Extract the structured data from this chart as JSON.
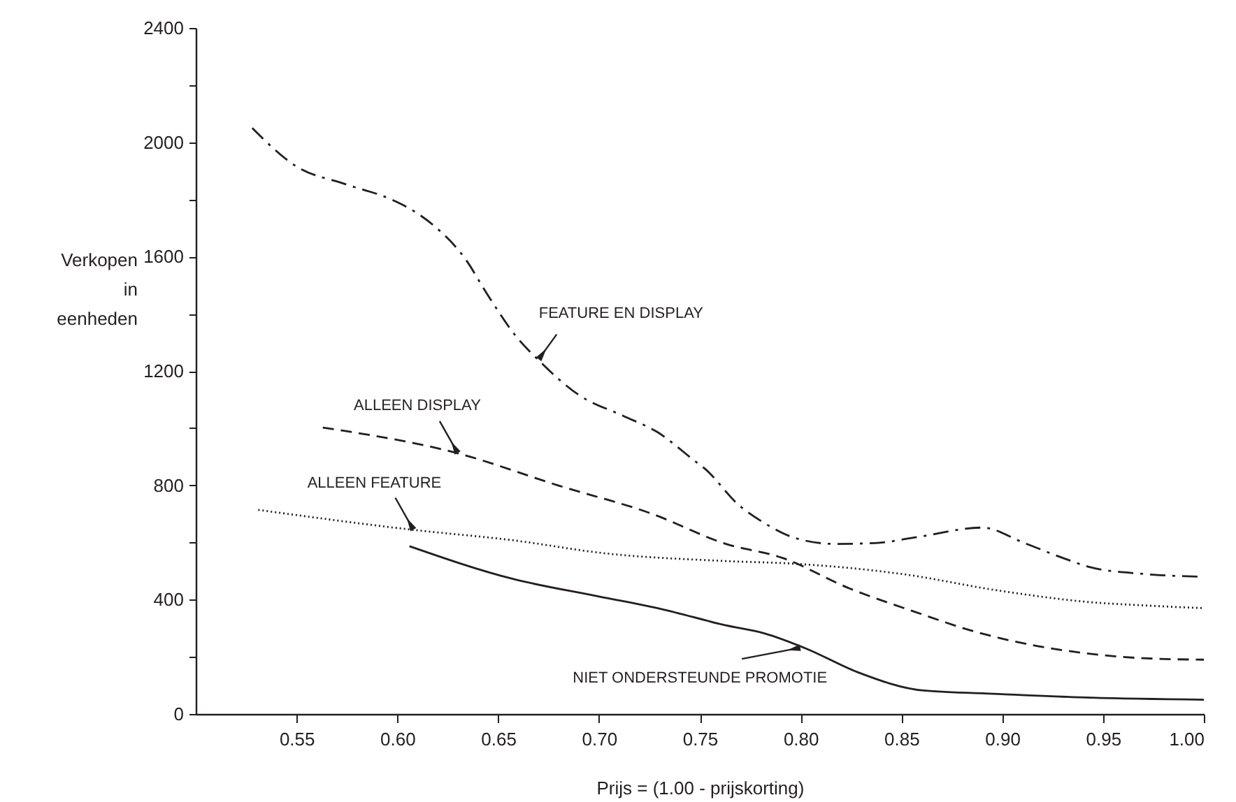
{
  "chart_data": {
    "type": "line",
    "xlabel": "Prijs = (1.00 - prijskorting)",
    "ylabel": "Verkopen in eenheden",
    "xlim": [
      0.5,
      1.0
    ],
    "ylim": [
      0,
      2400
    ],
    "xticks": [
      0.55,
      {
        "value": 0.6,
        "label": "0.60"
      },
      0.65,
      {
        "value": 0.7,
        "label": "0.70"
      },
      0.75,
      {
        "value": 0.8,
        "label": "0.80"
      },
      0.85,
      {
        "value": 0.9,
        "label": "0.90"
      },
      0.95,
      {
        "value": 1.0,
        "label": "1.00"
      }
    ],
    "yticks": [
      0,
      {
        "value": 200,
        "label": null
      },
      400,
      {
        "value": 600,
        "label": null
      },
      800,
      {
        "value": 1000,
        "label": null
      },
      1200,
      {
        "value": 1400,
        "label": null
      },
      1600,
      {
        "value": 1800,
        "label": null
      },
      2000,
      {
        "value": 2200,
        "label": null
      },
      2400
    ],
    "grid": false,
    "legend": false,
    "series": [
      {
        "color": "#231f20",
        "line_style": "dashdot",
        "x": [
          0.528,
          0.55,
          0.574,
          0.597,
          0.608,
          0.619,
          0.634,
          0.644,
          0.659,
          0.67,
          0.69,
          0.712,
          0.729,
          0.747,
          0.753,
          0.769,
          0.782,
          0.798,
          0.817,
          0.837,
          0.858,
          0.89,
          0.911,
          0.93,
          0.944,
          0.97,
          1.0
        ],
        "values": [
          2050,
          1915,
          1854,
          1800,
          1760,
          1703,
          1589,
          1475,
          1320,
          1238,
          1116,
          1043,
          986,
          888,
          855,
          733,
          668,
          614,
          595,
          598,
          619,
          652,
          598,
          546,
          513,
          490,
          480
        ]
      },
      {
        "color": "#231f20",
        "line_style": "dashed",
        "x": [
          0.563,
          0.63,
          0.68,
          0.726,
          0.763,
          0.791,
          0.824,
          0.856,
          0.888,
          0.918,
          0.942,
          0.97,
          1.0
        ],
        "values": [
          1002,
          912,
          799,
          701,
          595,
          546,
          440,
          359,
          285,
          237,
          212,
          195,
          190
        ]
      },
      {
        "color": "#231f20",
        "line_style": "dotted",
        "x": [
          0.531,
          0.608,
          0.657,
          0.703,
          0.763,
          0.796,
          0.851,
          0.898,
          0.944,
          0.97,
          1.0
        ],
        "values": [
          714,
          644,
          608,
          562,
          535,
          526,
          489,
          432,
          391,
          380,
          370
        ]
      },
      {
        "color": "#231f20",
        "line_style": "solid",
        "x": [
          0.606,
          0.657,
          0.7,
          0.731,
          0.763,
          0.782,
          0.803,
          0.828,
          0.861,
          0.898,
          0.944,
          1.0
        ],
        "values": [
          587,
          473,
          411,
          367,
          310,
          282,
          228,
          147,
          82,
          70,
          57,
          50
        ]
      }
    ],
    "annotations": [
      {
        "text": "FEATURE EN DISPLAY",
        "x": 0.67,
        "y": 1240
      },
      {
        "text": "ALLEEN DISPLAY",
        "x": 0.63,
        "y": 912
      },
      {
        "text": "ALLEEN FEATURE",
        "x": 0.608,
        "y": 644
      },
      {
        "text": "NIET ONDERSTEUNDE PROMOTIE",
        "x": 0.8,
        "y": 232
      }
    ]
  }
}
